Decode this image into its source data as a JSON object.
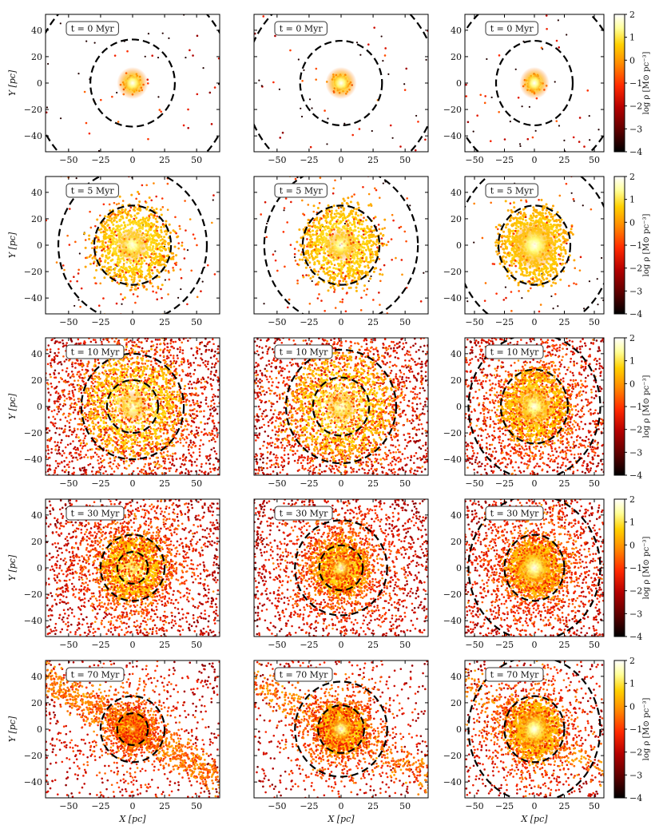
{
  "figure": {
    "layout": "5 rows x 3 columns of density scatter maps",
    "colorbar": {
      "label": "log ρ [M⊙ pc⁻³]",
      "ticks": [
        2,
        1,
        0,
        -1,
        -2,
        -3,
        -4
      ],
      "range": [
        -4,
        2
      ],
      "colormap": "hot",
      "colors": [
        "#000000",
        "#5a0000",
        "#b40000",
        "#ff2a00",
        "#ff8a00",
        "#ffd000",
        "#ffff9a",
        "#ffffff"
      ]
    }
  },
  "chart_data": [
    {
      "type": "scatter",
      "row": 0,
      "col": 0,
      "time": "t = 0 Myr",
      "xlim": [
        -68,
        68
      ],
      "ylim": [
        -52,
        52
      ],
      "xticks": [
        -50,
        -25,
        0,
        25,
        50
      ],
      "yticks": [
        -40,
        -20,
        0,
        20,
        40
      ],
      "xlabel": "",
      "ylabel": "Y [pc]",
      "core_radius": 4,
      "spread": 6,
      "density_peak": 1.8,
      "rings_pc": [
        33,
        78
      ],
      "field_density": 0.02,
      "tail": 0,
      "show_xticklabels": true,
      "show_yticklabels": true
    },
    {
      "type": "scatter",
      "row": 0,
      "col": 1,
      "time": "t = 0 Myr",
      "xlim": [
        -68,
        68
      ],
      "ylim": [
        -52,
        52
      ],
      "xticks": [
        -50,
        -25,
        0,
        25,
        50
      ],
      "yticks": [],
      "xlabel": "",
      "ylabel": "",
      "core_radius": 4,
      "spread": 6,
      "density_peak": 1.8,
      "rings_pc": [
        32,
        75
      ],
      "field_density": 0.02,
      "tail": 0,
      "show_xticklabels": true,
      "show_yticklabels": false
    },
    {
      "type": "scatter",
      "row": 0,
      "col": 2,
      "time": "t = 0 Myr",
      "xlim": [
        -58,
        58
      ],
      "ylim": [
        -52,
        52
      ],
      "xticks": [
        -50,
        -25,
        0,
        25,
        50
      ],
      "yticks": [
        -40,
        -20,
        0,
        20,
        40
      ],
      "xlabel": "",
      "ylabel": "",
      "core_radius": 4,
      "spread": 6,
      "density_peak": 1.8,
      "rings_pc": [
        32,
        70
      ],
      "field_density": 0.02,
      "tail": 0,
      "show_xticklabels": true,
      "show_yticklabels": true
    },
    {
      "type": "scatter",
      "row": 1,
      "col": 0,
      "time": "t = 5 Myr",
      "xlim": [
        -68,
        68
      ],
      "ylim": [
        -52,
        52
      ],
      "xticks": [
        -50,
        -25,
        0,
        25,
        50
      ],
      "yticks": [
        -40,
        -20,
        0,
        20,
        40
      ],
      "xlabel": "",
      "ylabel": "Y [pc]",
      "core_radius": 30,
      "spread": 18,
      "density_peak": 0.7,
      "rings_pc": [
        30,
        58
      ],
      "field_density": 0.0,
      "tail": 0,
      "show_xticklabels": true,
      "show_yticklabels": true
    },
    {
      "type": "scatter",
      "row": 1,
      "col": 1,
      "time": "t = 5 Myr",
      "xlim": [
        -68,
        68
      ],
      "ylim": [
        -52,
        52
      ],
      "xticks": [
        -50,
        -25,
        0,
        25,
        50
      ],
      "yticks": [],
      "xlabel": "",
      "ylabel": "",
      "core_radius": 30,
      "spread": 18,
      "density_peak": 0.7,
      "rings_pc": [
        30,
        60
      ],
      "field_density": 0.0,
      "tail": 0,
      "show_xticklabels": true,
      "show_yticklabels": false
    },
    {
      "type": "scatter",
      "row": 1,
      "col": 2,
      "time": "t = 5 Myr",
      "xlim": [
        -58,
        58
      ],
      "ylim": [
        -52,
        52
      ],
      "xticks": [
        -50,
        -25,
        0,
        25,
        50
      ],
      "yticks": [
        -40,
        -20,
        0,
        20,
        40
      ],
      "xlabel": "",
      "ylabel": "",
      "core_radius": 28,
      "spread": 8,
      "density_peak": 1.2,
      "rings_pc": [
        30,
        65
      ],
      "field_density": 0.0,
      "tail": 0,
      "show_xticklabels": true,
      "show_yticklabels": true
    },
    {
      "type": "scatter",
      "row": 2,
      "col": 0,
      "time": "t = 10 Myr",
      "xlim": [
        -68,
        68
      ],
      "ylim": [
        -52,
        52
      ],
      "xticks": [
        -50,
        -25,
        0,
        25,
        50
      ],
      "yticks": [
        -40,
        -20,
        0,
        20,
        40
      ],
      "xlabel": "",
      "ylabel": "Y [pc]",
      "core_radius": 40,
      "spread": 60,
      "density_peak": 0.5,
      "rings_pc": [
        20,
        40
      ],
      "field_density": 1.0,
      "tail": 0,
      "show_xticklabels": true,
      "show_yticklabels": true
    },
    {
      "type": "scatter",
      "row": 2,
      "col": 1,
      "time": "t = 10 Myr",
      "xlim": [
        -68,
        68
      ],
      "ylim": [
        -52,
        52
      ],
      "xticks": [
        -50,
        -25,
        0,
        25,
        50
      ],
      "yticks": [],
      "xlabel": "",
      "ylabel": "",
      "core_radius": 40,
      "spread": 60,
      "density_peak": 0.5,
      "rings_pc": [
        22,
        43
      ],
      "field_density": 1.0,
      "tail": 0,
      "show_xticklabels": true,
      "show_yticklabels": false
    },
    {
      "type": "scatter",
      "row": 2,
      "col": 2,
      "time": "t = 10 Myr",
      "xlim": [
        -58,
        58
      ],
      "ylim": [
        -52,
        52
      ],
      "xticks": [
        -50,
        -25,
        0,
        25,
        50
      ],
      "yticks": [
        -40,
        -20,
        0,
        20,
        40
      ],
      "xlabel": "",
      "ylabel": "",
      "core_radius": 28,
      "spread": 50,
      "density_peak": 1.0,
      "rings_pc": [
        28,
        55
      ],
      "field_density": 0.8,
      "tail": 0,
      "show_xticklabels": true,
      "show_yticklabels": true
    },
    {
      "type": "scatter",
      "row": 3,
      "col": 0,
      "time": "t = 30 Myr",
      "xlim": [
        -68,
        68
      ],
      "ylim": [
        -52,
        52
      ],
      "xticks": [
        -50,
        -25,
        0,
        25,
        50
      ],
      "yticks": [
        -40,
        -20,
        0,
        20,
        40
      ],
      "xlabel": "",
      "ylabel": "Y [pc]",
      "core_radius": 24,
      "spread": 70,
      "density_peak": 0.2,
      "rings_pc": [
        12,
        25
      ],
      "field_density": 1.0,
      "tail": 0,
      "show_xticklabels": true,
      "show_yticklabels": true
    },
    {
      "type": "scatter",
      "row": 3,
      "col": 1,
      "time": "t = 30 Myr",
      "xlim": [
        -68,
        68
      ],
      "ylim": [
        -52,
        52
      ],
      "xticks": [
        -50,
        -25,
        0,
        25,
        50
      ],
      "yticks": [],
      "xlabel": "",
      "ylabel": "",
      "core_radius": 20,
      "spread": 70,
      "density_peak": 0.8,
      "rings_pc": [
        17,
        36
      ],
      "field_density": 1.0,
      "tail": 0,
      "show_xticklabels": true,
      "show_yticklabels": false
    },
    {
      "type": "scatter",
      "row": 3,
      "col": 2,
      "time": "t = 30 Myr",
      "xlim": [
        -58,
        58
      ],
      "ylim": [
        -52,
        52
      ],
      "xticks": [
        -50,
        -25,
        0,
        25,
        50
      ],
      "yticks": [
        -40,
        -20,
        0,
        20,
        40
      ],
      "xlabel": "",
      "ylabel": "",
      "core_radius": 22,
      "spread": 60,
      "density_peak": 1.3,
      "rings_pc": [
        25,
        55
      ],
      "field_density": 0.9,
      "tail": 0,
      "show_xticklabels": true,
      "show_yticklabels": true
    },
    {
      "type": "scatter",
      "row": 4,
      "col": 0,
      "time": "t = 70 Myr",
      "xlim": [
        -68,
        68
      ],
      "ylim": [
        -52,
        52
      ],
      "xticks": [
        -50,
        -25,
        0,
        25,
        50
      ],
      "yticks": [
        -40,
        -20,
        0,
        20,
        40
      ],
      "xlabel": "X [pc]",
      "ylabel": "Y [pc]",
      "core_radius": 12,
      "spread": 70,
      "density_peak": 0.3,
      "rings_pc": [
        12,
        25
      ],
      "field_density": 0.5,
      "tail": 1,
      "show_xticklabels": true,
      "show_yticklabels": true
    },
    {
      "type": "scatter",
      "row": 4,
      "col": 1,
      "time": "t = 70 Myr",
      "xlim": [
        -68,
        68
      ],
      "ylim": [
        -52,
        52
      ],
      "xticks": [
        -50,
        -25,
        0,
        25,
        50
      ],
      "yticks": [],
      "xlabel": "X [pc]",
      "ylabel": "",
      "core_radius": 18,
      "spread": 70,
      "density_peak": 1.0,
      "rings_pc": [
        18,
        36
      ],
      "field_density": 0.4,
      "tail": 0.5,
      "show_xticklabels": true,
      "show_yticklabels": false
    },
    {
      "type": "scatter",
      "row": 4,
      "col": 2,
      "time": "t = 70 Myr",
      "xlim": [
        -58,
        58
      ],
      "ylim": [
        -52,
        52
      ],
      "xticks": [
        -50,
        -25,
        0,
        25,
        50
      ],
      "yticks": [
        -40,
        -20,
        0,
        20,
        40
      ],
      "xlabel": "X [pc]",
      "ylabel": "",
      "core_radius": 22,
      "spread": 60,
      "density_peak": 1.3,
      "rings_pc": [
        25,
        55
      ],
      "field_density": 0.4,
      "tail": 0.3,
      "show_xticklabels": true,
      "show_yticklabels": true
    }
  ]
}
